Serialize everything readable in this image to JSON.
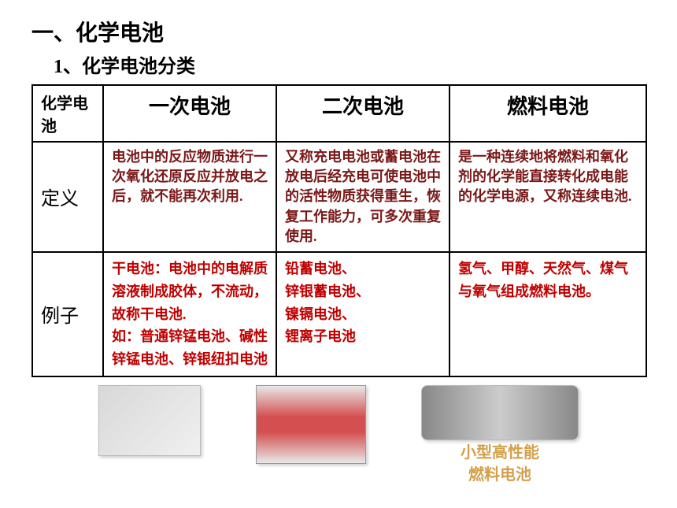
{
  "heading1": "一、化学电池",
  "heading2": "1、化学电池分类",
  "table": {
    "header": {
      "c0": "化学电池",
      "c1": "一次电池",
      "c2": "二次电池",
      "c3": "燃料电池"
    },
    "row_def": {
      "label": "定义",
      "c1": "电池中的反应物质进行一次氧化还原反应并放电之后，就不能再次利用.",
      "c2": "又称充电电池或蓄电池在放电后经充电可使电池中的活性物质获得重生，恢复工作能力，可多次重复使用.",
      "c3": "是一种连续地将燃料和氧化剂的化学能直接转化成电能的化学电源，又称连续电池."
    },
    "row_ex": {
      "label": "例子",
      "c1a": "干电池：电池中的电解质溶液制成胶体，不流动，故称干电池.",
      "c1b": "如：普通锌锰电池、碱性锌锰电池、锌银纽扣电池",
      "c2": "铅蓄电池、\n锌银蓄电池、\n镍镉电池、\n锂离子电池",
      "c3": "氢气、甲醇、天然气、煤气与氧气组成燃料电池。"
    }
  },
  "caption3a": "小型高性能",
  "caption3b": "燃料电池",
  "colors": {
    "def_text": "#7a1818",
    "ex_text": "#c00000",
    "caption": "#d4a04a"
  }
}
